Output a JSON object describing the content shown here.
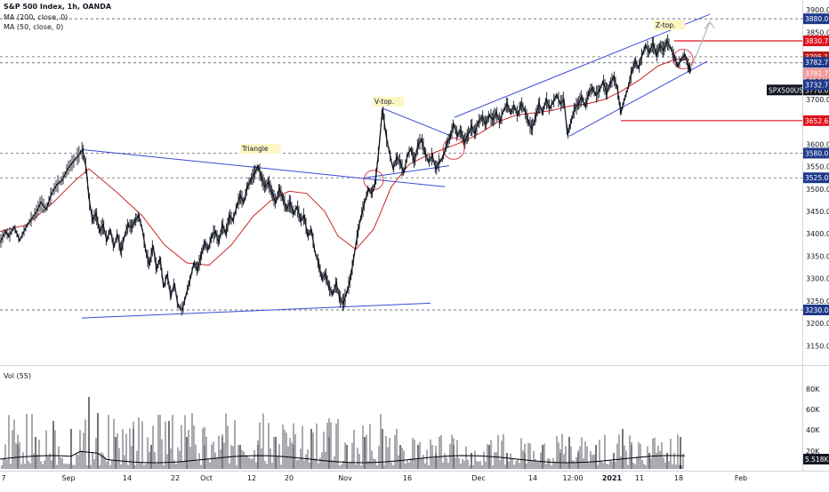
{
  "chart_data": {
    "type": "line",
    "title": "S&P 500 Index, 1h, OANDA",
    "indicators": [
      "MA (200, close, 0)",
      "MA (50, close, 0)"
    ],
    "volume_label": "Vol (55)",
    "x_ticks": [
      "7",
      "Sep",
      "14",
      "22",
      "Oct",
      "12",
      "20",
      "Nov",
      "16",
      "Dec",
      "14",
      "12:00",
      "2021",
      "11",
      "18",
      "Feb"
    ],
    "y_ticks": [
      3150,
      3200,
      3250,
      3300,
      3350,
      3400,
      3450,
      3500,
      3550,
      3600,
      3650,
      3700,
      3750,
      3800,
      3850,
      3900
    ],
    "vol_ticks": [
      "20K",
      "40K",
      "60K",
      "80K"
    ],
    "ylim": [
      3115,
      3910
    ],
    "price_tags": [
      {
        "label": "3880.0",
        "value": 3880.0,
        "color": "#1e3a8a"
      },
      {
        "label": "3830.7",
        "value": 3830.7,
        "color": "#e0141e"
      },
      {
        "label": "3795.1",
        "value": 3795.1,
        "color": "#b71c1c"
      },
      {
        "label": "3782.7",
        "value": 3782.7,
        "color": "#1e3a8a"
      },
      {
        "label": "3781.7",
        "value": 3781.7,
        "color": "#ef9a9a"
      },
      {
        "label": "SPX500USD",
        "value": 3776.6,
        "color": "#131722"
      },
      {
        "label": "3776.6",
        "value": 3776.6,
        "color": "#131722"
      },
      {
        "label": "3732.7",
        "value": 3732.7,
        "color": "#1e3a8a"
      },
      {
        "label": "3652.6",
        "value": 3652.6,
        "color": "#e0141e"
      },
      {
        "label": "3580.0",
        "value": 3580.0,
        "color": "#1e3a8a"
      },
      {
        "label": "3525.0",
        "value": 3525.0,
        "color": "#1e3a8a"
      },
      {
        "label": "3230.0",
        "value": 3230.0,
        "color": "#1e3a8a"
      }
    ],
    "vol_tag": "5.518K",
    "annotations": [
      "Triangle",
      "V-top.",
      "Z-top."
    ],
    "price_series": [
      [
        0,
        3380
      ],
      [
        6,
        3405
      ],
      [
        10,
        3395
      ],
      [
        16,
        3415
      ],
      [
        22,
        3385
      ],
      [
        28,
        3410
      ],
      [
        34,
        3430
      ],
      [
        40,
        3445
      ],
      [
        46,
        3470
      ],
      [
        52,
        3455
      ],
      [
        58,
        3490
      ],
      [
        64,
        3510
      ],
      [
        70,
        3520
      ],
      [
        76,
        3545
      ],
      [
        82,
        3560
      ],
      [
        88,
        3575
      ],
      [
        93,
        3588
      ],
      [
        97,
        3545
      ],
      [
        100,
        3480
      ],
      [
        104,
        3430
      ],
      [
        108,
        3445
      ],
      [
        112,
        3405
      ],
      [
        116,
        3420
      ],
      [
        120,
        3385
      ],
      [
        124,
        3410
      ],
      [
        128,
        3370
      ],
      [
        132,
        3400
      ],
      [
        136,
        3360
      ],
      [
        140,
        3395
      ],
      [
        144,
        3420
      ],
      [
        148,
        3415
      ],
      [
        152,
        3430
      ],
      [
        156,
        3440
      ],
      [
        160,
        3410
      ],
      [
        164,
        3360
      ],
      [
        168,
        3330
      ],
      [
        172,
        3375
      ],
      [
        176,
        3320
      ],
      [
        180,
        3345
      ],
      [
        184,
        3280
      ],
      [
        188,
        3310
      ],
      [
        192,
        3260
      ],
      [
        196,
        3290
      ],
      [
        200,
        3240
      ],
      [
        205,
        3230
      ],
      [
        210,
        3270
      ],
      [
        214,
        3300
      ],
      [
        218,
        3335
      ],
      [
        222,
        3320
      ],
      [
        226,
        3350
      ],
      [
        230,
        3380
      ],
      [
        234,
        3365
      ],
      [
        238,
        3395
      ],
      [
        242,
        3405
      ],
      [
        246,
        3380
      ],
      [
        250,
        3420
      ],
      [
        254,
        3400
      ],
      [
        258,
        3440
      ],
      [
        262,
        3430
      ],
      [
        266,
        3460
      ],
      [
        270,
        3485
      ],
      [
        274,
        3470
      ],
      [
        278,
        3505
      ],
      [
        282,
        3520
      ],
      [
        286,
        3535
      ],
      [
        290,
        3550
      ],
      [
        294,
        3525
      ],
      [
        298,
        3505
      ],
      [
        302,
        3515
      ],
      [
        306,
        3490
      ],
      [
        310,
        3470
      ],
      [
        314,
        3500
      ],
      [
        318,
        3480
      ],
      [
        322,
        3455
      ],
      [
        326,
        3470
      ],
      [
        330,
        3445
      ],
      [
        334,
        3460
      ],
      [
        338,
        3430
      ],
      [
        342,
        3440
      ],
      [
        346,
        3395
      ],
      [
        350,
        3410
      ],
      [
        354,
        3360
      ],
      [
        358,
        3335
      ],
      [
        362,
        3300
      ],
      [
        366,
        3310
      ],
      [
        370,
        3280
      ],
      [
        374,
        3265
      ],
      [
        378,
        3290
      ],
      [
        382,
        3255
      ],
      [
        386,
        3245
      ],
      [
        390,
        3270
      ],
      [
        394,
        3300
      ],
      [
        398,
        3350
      ],
      [
        402,
        3400
      ],
      [
        406,
        3440
      ],
      [
        410,
        3470
      ],
      [
        414,
        3500
      ],
      [
        418,
        3490
      ],
      [
        422,
        3515
      ],
      [
        426,
        3590
      ],
      [
        430,
        3680
      ],
      [
        434,
        3620
      ],
      [
        438,
        3580
      ],
      [
        442,
        3545
      ],
      [
        446,
        3570
      ],
      [
        450,
        3560
      ],
      [
        454,
        3535
      ],
      [
        458,
        3575
      ],
      [
        462,
        3590
      ],
      [
        466,
        3560
      ],
      [
        470,
        3600
      ],
      [
        474,
        3610
      ],
      [
        478,
        3580
      ],
      [
        482,
        3560
      ],
      [
        486,
        3575
      ],
      [
        490,
        3545
      ],
      [
        494,
        3560
      ],
      [
        498,
        3570
      ],
      [
        502,
        3600
      ],
      [
        506,
        3615
      ],
      [
        510,
        3645
      ],
      [
        514,
        3620
      ],
      [
        518,
        3630
      ],
      [
        522,
        3605
      ],
      [
        526,
        3620
      ],
      [
        530,
        3640
      ],
      [
        534,
        3625
      ],
      [
        538,
        3650
      ],
      [
        542,
        3660
      ],
      [
        546,
        3645
      ],
      [
        550,
        3665
      ],
      [
        554,
        3655
      ],
      [
        558,
        3670
      ],
      [
        562,
        3650
      ],
      [
        566,
        3675
      ],
      [
        570,
        3690
      ],
      [
        574,
        3670
      ],
      [
        578,
        3685
      ],
      [
        582,
        3665
      ],
      [
        586,
        3690
      ],
      [
        590,
        3675
      ],
      [
        594,
        3650
      ],
      [
        598,
        3635
      ],
      [
        602,
        3660
      ],
      [
        606,
        3690
      ],
      [
        610,
        3670
      ],
      [
        614,
        3700
      ],
      [
        618,
        3680
      ],
      [
        622,
        3695
      ],
      [
        626,
        3710
      ],
      [
        630,
        3690
      ],
      [
        634,
        3700
      ],
      [
        638,
        3620
      ],
      [
        642,
        3650
      ],
      [
        646,
        3680
      ],
      [
        650,
        3690
      ],
      [
        654,
        3705
      ],
      [
        658,
        3685
      ],
      [
        662,
        3715
      ],
      [
        666,
        3725
      ],
      [
        670,
        3710
      ],
      [
        674,
        3720
      ],
      [
        678,
        3740
      ],
      [
        682,
        3715
      ],
      [
        686,
        3735
      ],
      [
        690,
        3750
      ],
      [
        694,
        3725
      ],
      [
        698,
        3670
      ],
      [
        702,
        3700
      ],
      [
        706,
        3725
      ],
      [
        710,
        3760
      ],
      [
        714,
        3785
      ],
      [
        718,
        3770
      ],
      [
        722,
        3800
      ],
      [
        726,
        3820
      ],
      [
        730,
        3805
      ],
      [
        734,
        3825
      ],
      [
        738,
        3800
      ],
      [
        742,
        3820
      ],
      [
        746,
        3810
      ],
      [
        750,
        3830
      ],
      [
        754,
        3815
      ],
      [
        758,
        3795
      ],
      [
        762,
        3775
      ],
      [
        766,
        3790
      ],
      [
        770,
        3800
      ],
      [
        774,
        3772
      ],
      [
        777,
        3765
      ]
    ],
    "ma50_series": [
      [
        0,
        3405
      ],
      [
        30,
        3420
      ],
      [
        60,
        3470
      ],
      [
        85,
        3520
      ],
      [
        100,
        3545
      ],
      [
        130,
        3495
      ],
      [
        160,
        3440
      ],
      [
        185,
        3375
      ],
      [
        210,
        3335
      ],
      [
        235,
        3330
      ],
      [
        260,
        3375
      ],
      [
        285,
        3440
      ],
      [
        305,
        3475
      ],
      [
        325,
        3495
      ],
      [
        345,
        3490
      ],
      [
        365,
        3450
      ],
      [
        380,
        3395
      ],
      [
        400,
        3365
      ],
      [
        420,
        3410
      ],
      [
        440,
        3505
      ],
      [
        460,
        3555
      ],
      [
        480,
        3575
      ],
      [
        500,
        3590
      ],
      [
        520,
        3605
      ],
      [
        540,
        3625
      ],
      [
        560,
        3650
      ],
      [
        580,
        3665
      ],
      [
        600,
        3670
      ],
      [
        620,
        3675
      ],
      [
        640,
        3685
      ],
      [
        660,
        3690
      ],
      [
        680,
        3700
      ],
      [
        700,
        3720
      ],
      [
        720,
        3745
      ],
      [
        740,
        3775
      ],
      [
        760,
        3790
      ],
      [
        775,
        3788
      ]
    ],
    "volume_series": [
      [
        20,
        3
      ],
      [
        40,
        4
      ],
      [
        60,
        6
      ],
      [
        80,
        5
      ],
      [
        100,
        9
      ],
      [
        110,
        7
      ],
      [
        130,
        4
      ],
      [
        150,
        5
      ],
      [
        170,
        3
      ],
      [
        190,
        6
      ],
      [
        210,
        4
      ],
      [
        230,
        3
      ],
      [
        250,
        4
      ],
      [
        270,
        3
      ],
      [
        290,
        3
      ],
      [
        310,
        4
      ],
      [
        330,
        3
      ],
      [
        350,
        5
      ],
      [
        370,
        4
      ],
      [
        390,
        3
      ],
      [
        410,
        4
      ],
      [
        430,
        5
      ],
      [
        450,
        3
      ],
      [
        470,
        3
      ],
      [
        490,
        2
      ],
      [
        510,
        3
      ],
      [
        530,
        2
      ],
      [
        550,
        3
      ],
      [
        570,
        2
      ],
      [
        590,
        2
      ],
      [
        610,
        3
      ],
      [
        630,
        2
      ],
      [
        640,
        4
      ],
      [
        650,
        2
      ],
      [
        670,
        3
      ],
      [
        690,
        2
      ],
      [
        700,
        5
      ],
      [
        710,
        3
      ],
      [
        730,
        2
      ],
      [
        750,
        2
      ],
      [
        765,
        4
      ]
    ]
  }
}
